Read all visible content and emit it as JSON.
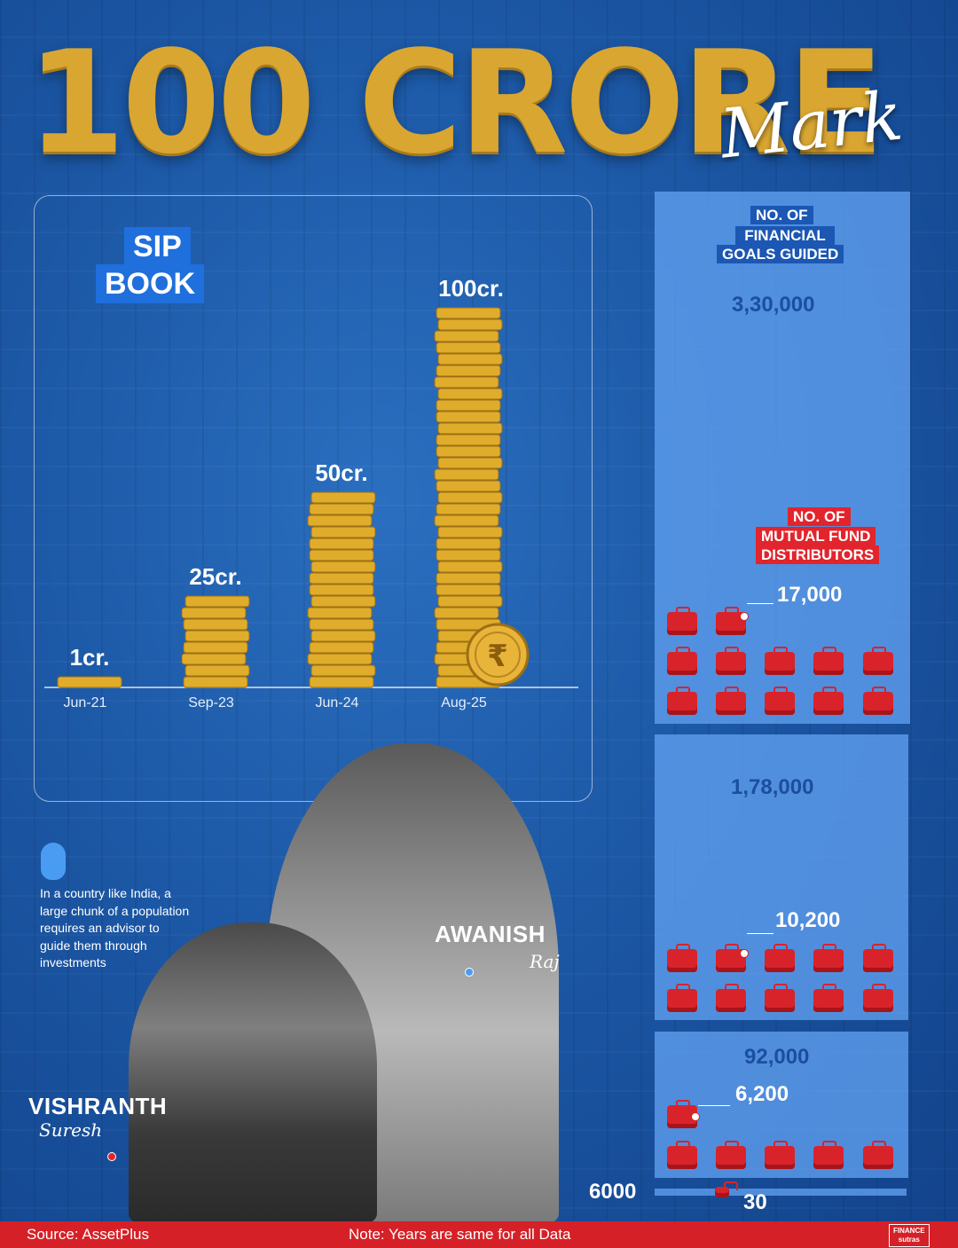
{
  "header": {
    "title": "100 CRORE",
    "subtitle": "Mark"
  },
  "sip_badge": {
    "line1": "SIP",
    "line2": "BOOK"
  },
  "chart_data": {
    "type": "bar",
    "categories": [
      "Jun-21",
      "Sep-23",
      "Jun-24",
      "Aug-25"
    ],
    "values": [
      1,
      25,
      50,
      100
    ],
    "data_labels": [
      "1cr.",
      "25cr.",
      "50cr.",
      "100cr."
    ],
    "colors": {
      "coin": "#e0ac2c",
      "coin_edge": "#9c6f12",
      "axis": "#ffffff"
    }
  },
  "goals": {
    "label_lines": [
      "NO. OF",
      "FINANCIAL",
      "GOALS GUIDED"
    ],
    "values": [
      "3,30,000",
      "1,78,000",
      "92,000"
    ]
  },
  "distributors": {
    "label_lines": [
      "NO. OF",
      "MUTUAL FUND",
      "DISTRIBUTORS"
    ],
    "values": [
      "17,000",
      "10,200",
      "6,200"
    ]
  },
  "baseline": {
    "left": "6000",
    "right": "30"
  },
  "quote": "In a country like India, a large chunk of a population requires an advisor to guide them through investments",
  "people": [
    {
      "first": "AWANISH",
      "last": "Raj"
    },
    {
      "first": "VISHRANTH",
      "last": "Suresh"
    }
  ],
  "footer": {
    "source": "Source: AssetPlus",
    "note": "Note: Years are same for all Data",
    "logo_top": "FINANCE",
    "logo_bottom": "sutras"
  }
}
